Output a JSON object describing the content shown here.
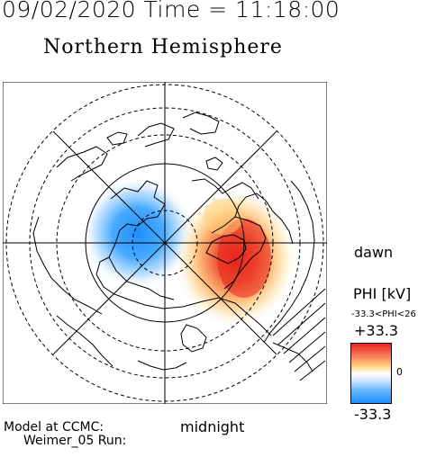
{
  "header": {
    "title": "09/02/2020 Time = 11:18:00",
    "subtitle": "Northern Hemisphere"
  },
  "map": {
    "dawn_label": "dawn",
    "midnight_label": "midnight"
  },
  "footer": {
    "model_line1": "Model at CCMC:",
    "model_line2": "Weimer_05 Run:"
  },
  "colorbar": {
    "title": "PHI [kV]",
    "range_text": "-33.3<PHI<26",
    "max_label": "+33.3",
    "zero_label": "0",
    "min_label": "-33.3",
    "colors": {
      "negative": "#1f8fff",
      "zero": "#ffffff",
      "positive": "#e8221b",
      "mid_positive": "#ffd27a"
    }
  },
  "chart_data": {
    "type": "heatmap",
    "projection": "polar stereographic, north pole centered",
    "variable": "PHI [kV]",
    "scale": {
      "min": -33.3,
      "max": 33.3
    },
    "data_range": {
      "min": -33.3,
      "max": 26
    },
    "cells": [
      {
        "polarity": "negative",
        "peak_kv": -33.3,
        "mlt_center": 21,
        "colat_deg": 11
      },
      {
        "polarity": "positive",
        "peak_kv": 26,
        "mlt_center": 7,
        "colat_deg": 12
      }
    ]
  }
}
